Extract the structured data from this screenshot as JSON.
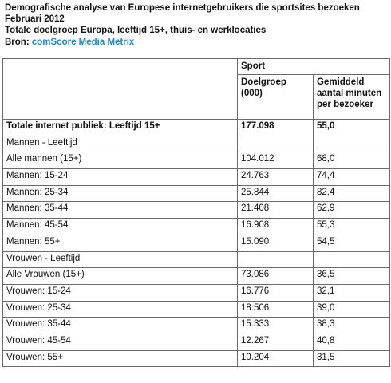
{
  "header": {
    "title_line1": "Demografische analyse van Europese internetgebruikers die sportsites bezoeken",
    "title_line2": "Februari 2012",
    "subtitle": "Totale doelgroep Europa, leeftijd 15+, thuis- en werklocaties",
    "source_label": "Bron: ",
    "source_name": "comScore Media Metrix"
  },
  "table": {
    "group_header": "Sport",
    "col2_header": "Doelgroep (000)",
    "col3_header": "Gemiddeld aantal minuten per bezoeker",
    "rows": [
      {
        "label": "Totale internet publiek: Leeftijd 15+",
        "audience": "177.098",
        "minutes": "55,0"
      },
      {
        "label": "Mannen - Leeftijd",
        "audience": "",
        "minutes": ""
      },
      {
        "label": "Alle mannen (15+)",
        "audience": "104.012",
        "minutes": "68,0"
      },
      {
        "label": "Mannen: 15-24",
        "audience": "24.763",
        "minutes": "74,4"
      },
      {
        "label": "Mannen: 25-34",
        "audience": "25.844",
        "minutes": "82,4"
      },
      {
        "label": "Mannen: 35-44",
        "audience": "21.408",
        "minutes": "62,9"
      },
      {
        "label": "Mannen: 45-54",
        "audience": "16.908",
        "minutes": "55,3"
      },
      {
        "label": "Mannen: 55+",
        "audience": "15.090",
        "minutes": "54,5"
      },
      {
        "label": "Vrouwen - Leeftijd",
        "audience": "",
        "minutes": ""
      },
      {
        "label": "Alle Vrouwen (15+)",
        "audience": "73.086",
        "minutes": "36,5"
      },
      {
        "label": "Vrouwen: 15-24",
        "audience": "16.776",
        "minutes": "32,1"
      },
      {
        "label": "Vrouwen: 25-34",
        "audience": "18.506",
        "minutes": "39,0"
      },
      {
        "label": "Vrouwen: 35-44",
        "audience": "15.333",
        "minutes": "38,3"
      },
      {
        "label": "Vrouwen: 45-54",
        "audience": "12.267",
        "minutes": "40,8"
      },
      {
        "label": "Vrouwen: 55+",
        "audience": "10.204",
        "minutes": "31,5"
      }
    ]
  }
}
